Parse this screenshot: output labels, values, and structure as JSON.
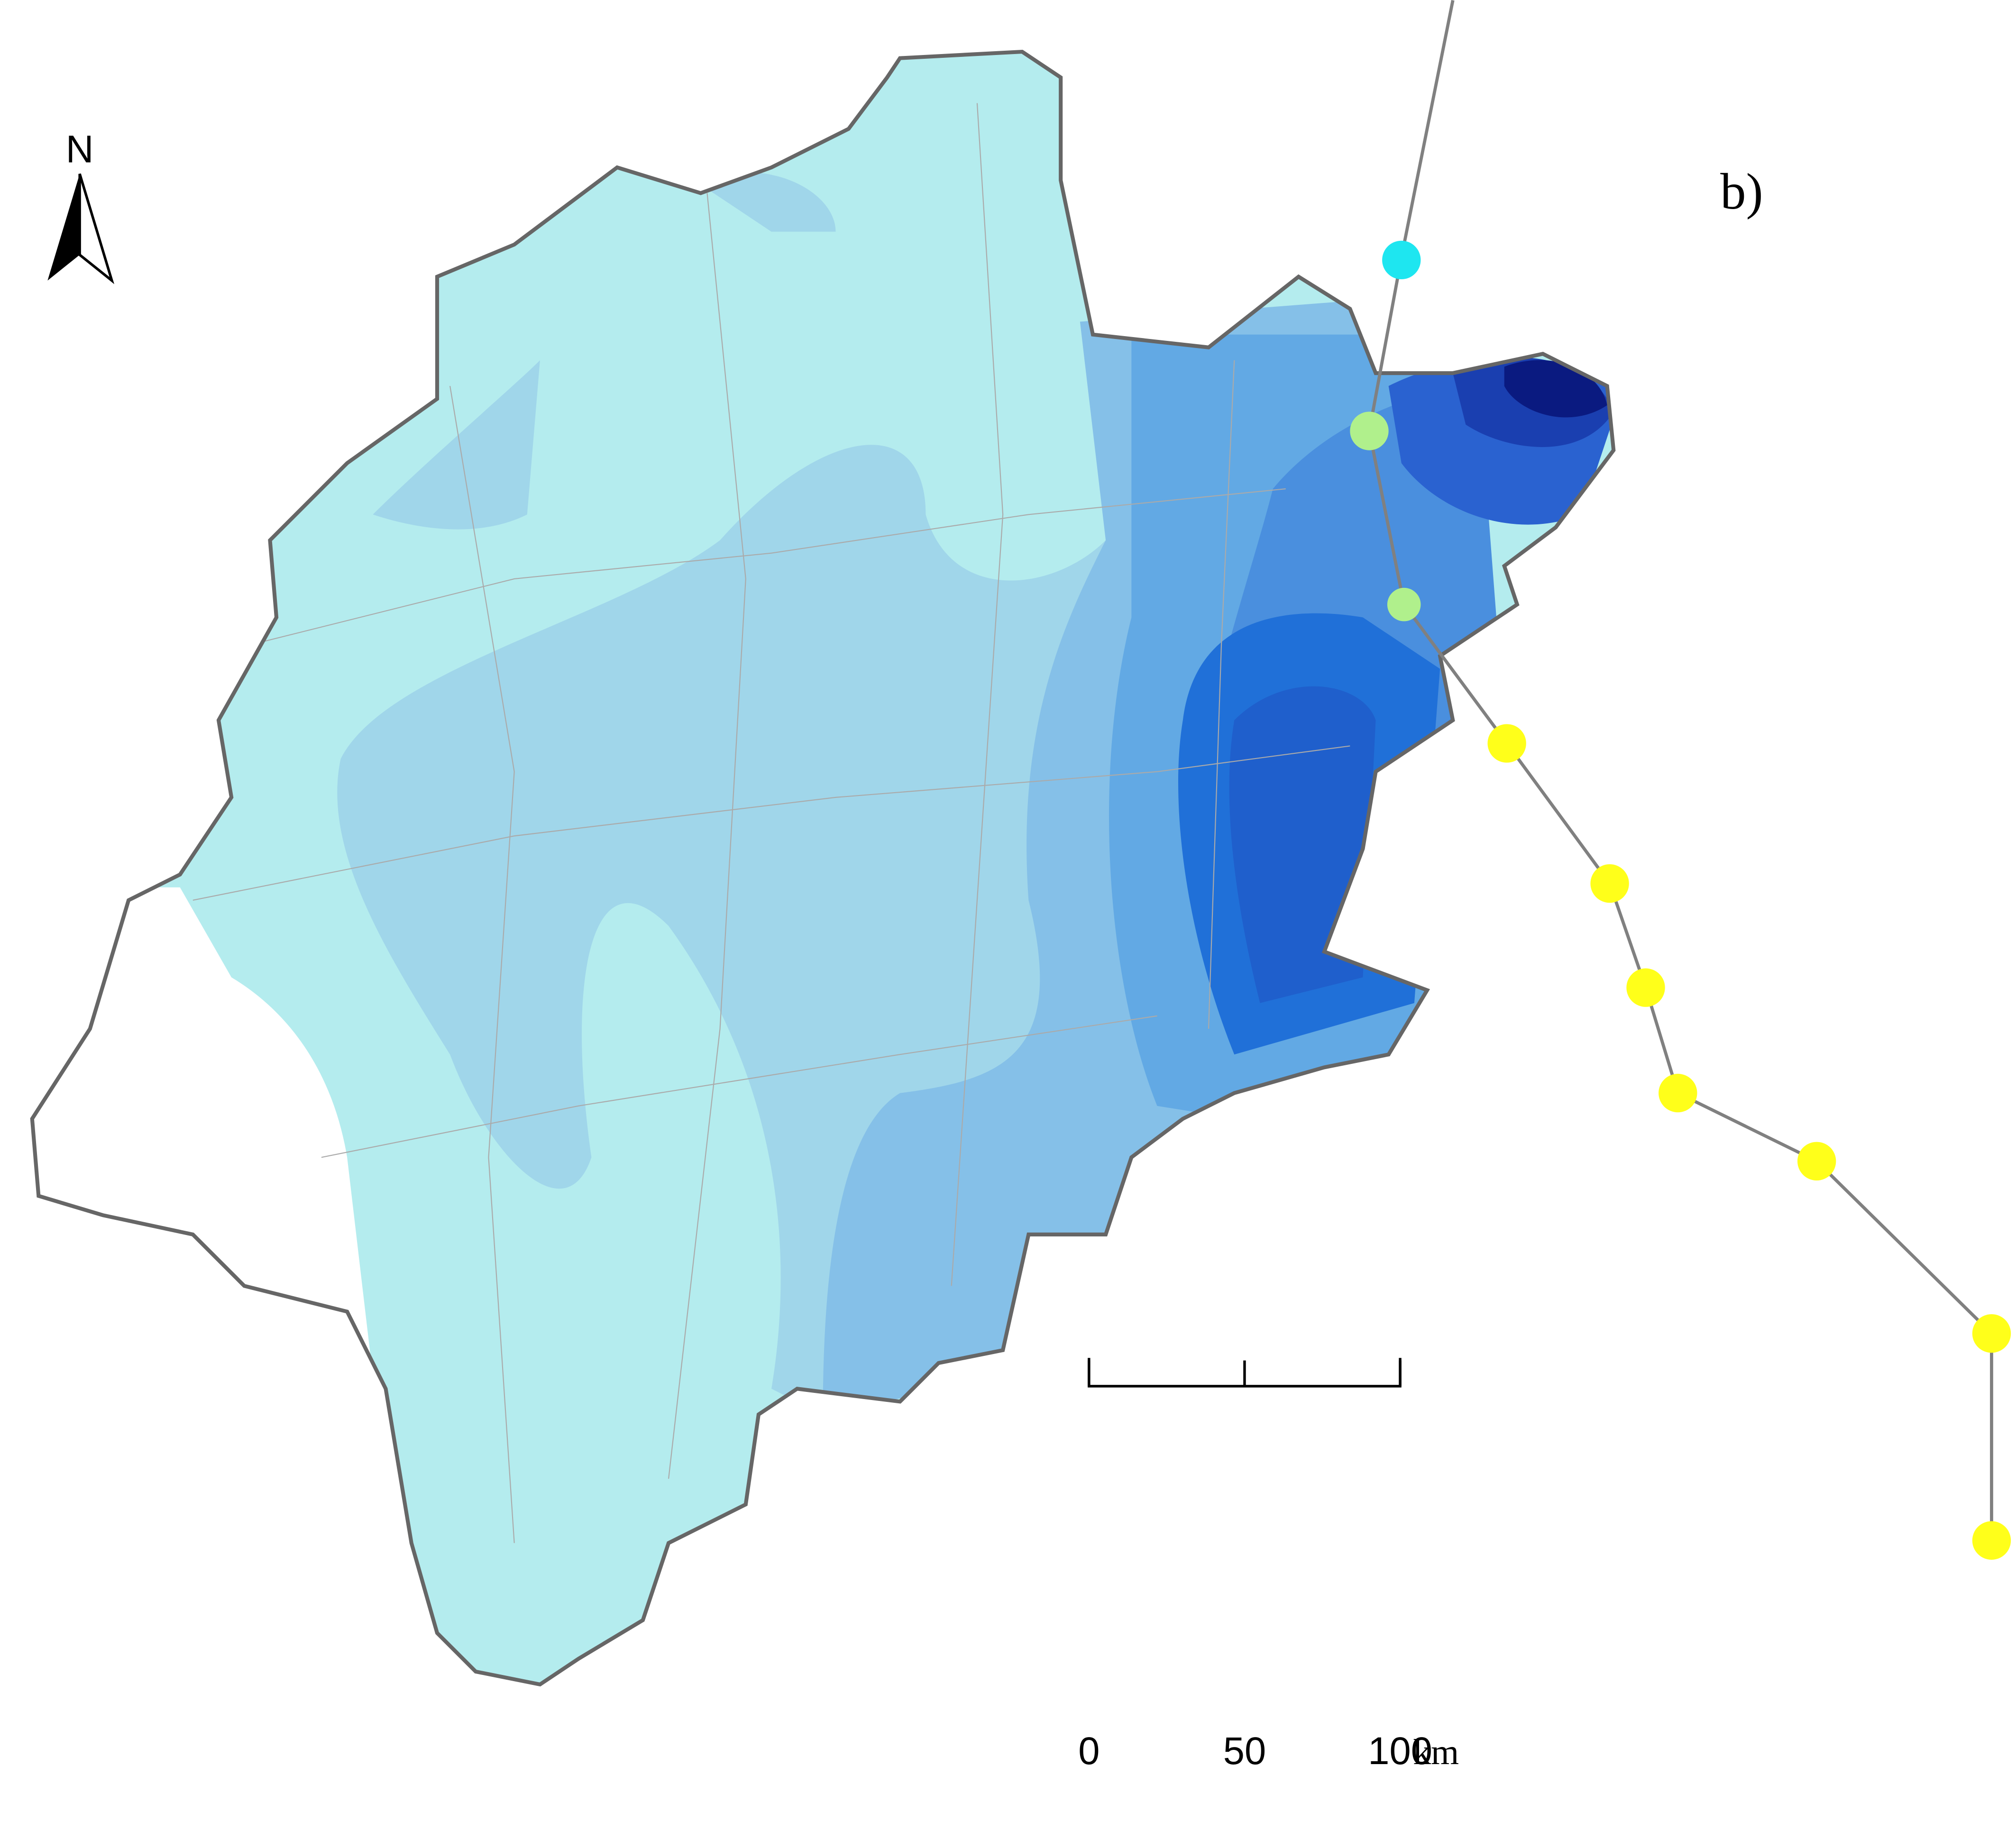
{
  "north_arrow": {
    "label": "N"
  },
  "panel_label": "b)",
  "scale_bar": {
    "ticks": [
      0,
      50,
      100
    ],
    "unit": "km"
  }
}
